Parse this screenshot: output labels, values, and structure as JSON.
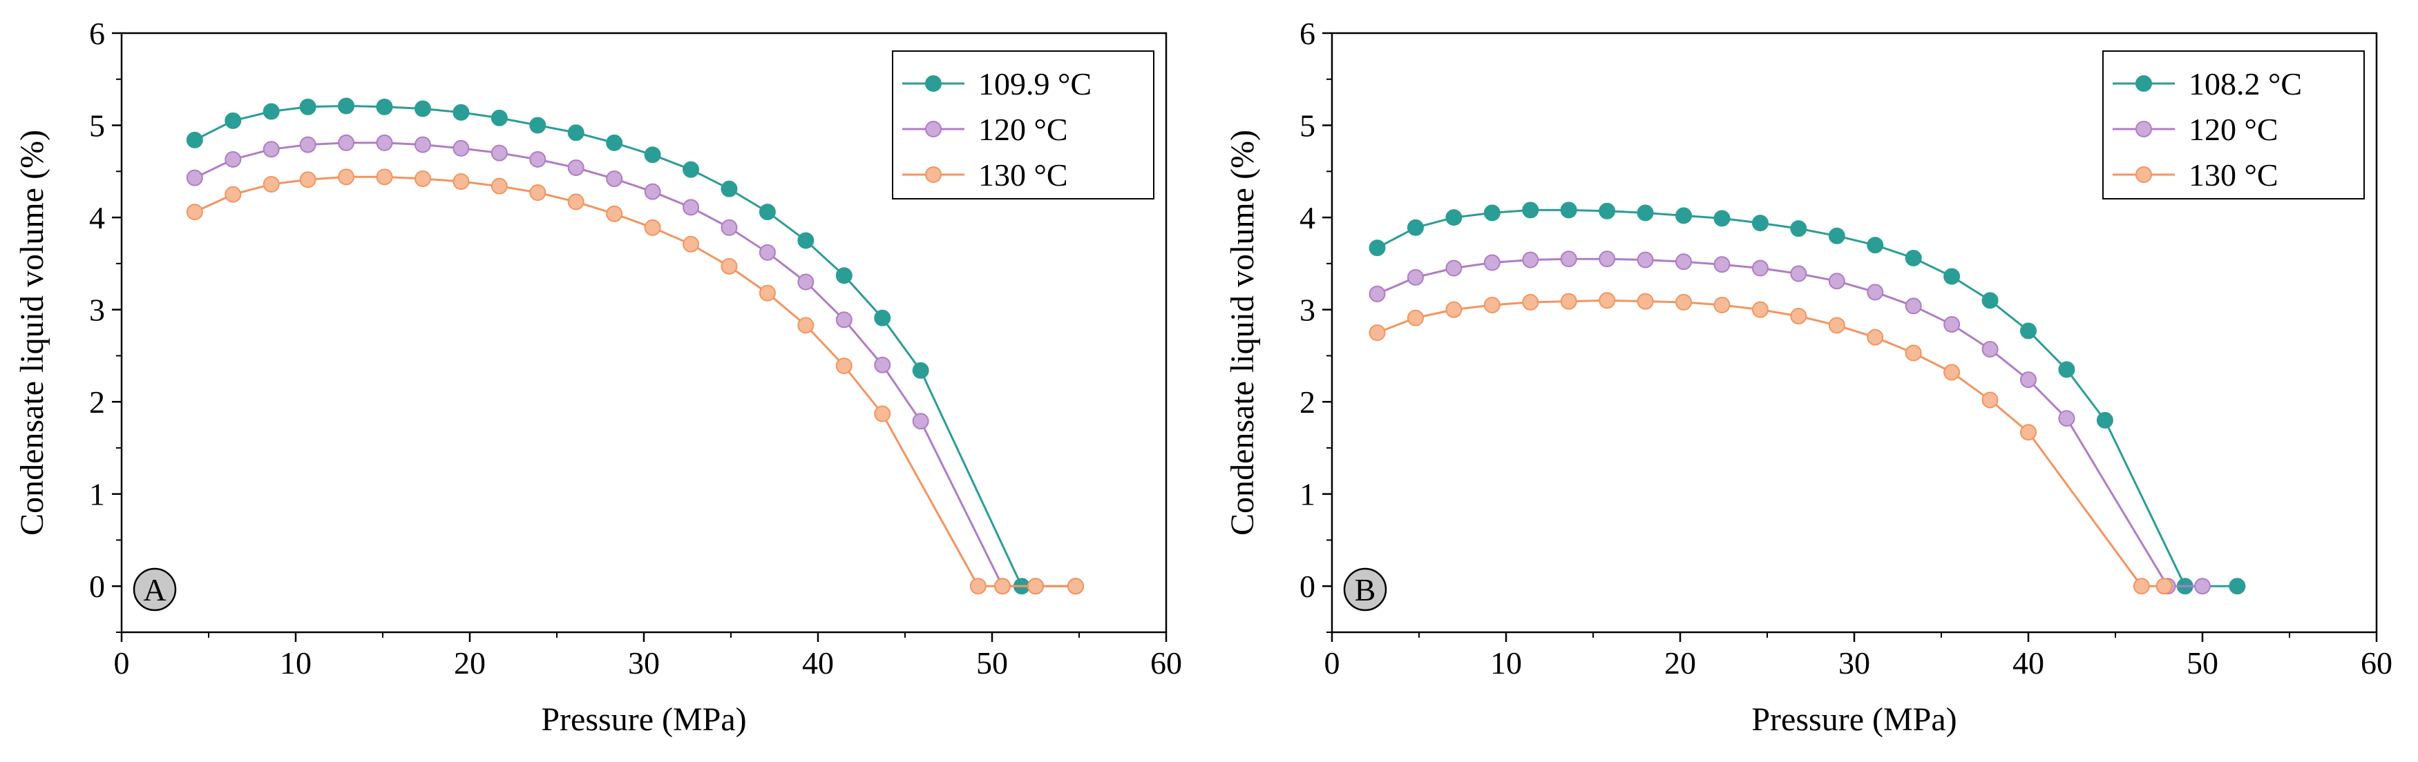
{
  "chart_data": [
    {
      "type": "line",
      "panel_label": "A",
      "xlabel": "Pressure (MPa)",
      "ylabel": "Condensate liquid volume (%)",
      "xlim": [
        0,
        60
      ],
      "ylim": [
        -0.5,
        6
      ],
      "xticks": [
        "0",
        "10",
        "20",
        "30",
        "40",
        "50",
        "60"
      ],
      "yticks": [
        "0",
        "1",
        "2",
        "3",
        "4",
        "5",
        "6"
      ],
      "legend_position": "top-right",
      "series": [
        {
          "name": "109.9 °C",
          "color": "#2a9d96",
          "x": [
            4.2,
            6.4,
            8.6,
            10.7,
            12.9,
            15.1,
            17.3,
            19.5,
            21.7,
            23.9,
            26.1,
            28.3,
            30.5,
            32.7,
            34.9,
            37.1,
            39.3,
            41.5,
            43.7,
            45.9,
            51.7,
            52.5,
            54.8
          ],
          "y": [
            4.84,
            5.05,
            5.15,
            5.2,
            5.21,
            5.2,
            5.18,
            5.14,
            5.08,
            5.0,
            4.92,
            4.81,
            4.68,
            4.52,
            4.31,
            4.06,
            3.75,
            3.37,
            2.91,
            2.34,
            0.0,
            0.0,
            0.0
          ]
        },
        {
          "name": "120 °C",
          "color": "#b07cc6",
          "x": [
            4.2,
            6.4,
            8.6,
            10.7,
            12.9,
            15.1,
            17.3,
            19.5,
            21.7,
            23.9,
            26.1,
            28.3,
            30.5,
            32.7,
            34.9,
            37.1,
            39.3,
            41.5,
            43.7,
            45.9,
            50.6,
            52.5,
            54.8
          ],
          "y": [
            4.43,
            4.63,
            4.74,
            4.79,
            4.81,
            4.81,
            4.79,
            4.75,
            4.7,
            4.63,
            4.54,
            4.42,
            4.28,
            4.11,
            3.89,
            3.62,
            3.3,
            2.89,
            2.4,
            1.79,
            0.0,
            0.0,
            0.0
          ]
        },
        {
          "name": "130 °C",
          "color": "#f3955f",
          "x": [
            4.2,
            6.4,
            8.6,
            10.7,
            12.9,
            15.1,
            17.3,
            19.5,
            21.7,
            23.9,
            26.1,
            28.3,
            30.5,
            32.7,
            34.9,
            37.1,
            39.3,
            41.5,
            43.7,
            49.2,
            50.6,
            52.5,
            54.8
          ],
          "y": [
            4.06,
            4.25,
            4.36,
            4.41,
            4.44,
            4.44,
            4.42,
            4.39,
            4.34,
            4.27,
            4.17,
            4.04,
            3.89,
            3.71,
            3.47,
            3.18,
            2.83,
            2.39,
            1.87,
            0.0,
            0.0,
            0.0,
            0.0
          ]
        }
      ]
    },
    {
      "type": "line",
      "panel_label": "B",
      "xlabel": "Pressure (MPa)",
      "ylabel": "Condensate liquid volume (%)",
      "xlim": [
        0,
        60
      ],
      "ylim": [
        -0.5,
        6
      ],
      "xticks": [
        "0",
        "10",
        "20",
        "30",
        "40",
        "50",
        "60"
      ],
      "yticks": [
        "0",
        "1",
        "2",
        "3",
        "4",
        "5",
        "6"
      ],
      "legend_position": "top-right",
      "series": [
        {
          "name": "108.2 °C",
          "color": "#2a9d96",
          "x": [
            2.6,
            4.8,
            7.0,
            9.2,
            11.4,
            13.6,
            15.8,
            18.0,
            20.2,
            22.4,
            24.6,
            26.8,
            29.0,
            31.2,
            33.4,
            35.6,
            37.8,
            40.0,
            42.2,
            44.4,
            49.0,
            52.0
          ],
          "y": [
            3.67,
            3.89,
            4.0,
            4.05,
            4.08,
            4.08,
            4.07,
            4.05,
            4.02,
            3.99,
            3.94,
            3.88,
            3.8,
            3.7,
            3.56,
            3.36,
            3.1,
            2.77,
            2.35,
            1.8,
            0.0,
            0.0
          ]
        },
        {
          "name": "120 °C",
          "color": "#b07cc6",
          "x": [
            2.6,
            4.8,
            7.0,
            9.2,
            11.4,
            13.6,
            15.8,
            18.0,
            20.2,
            22.4,
            24.6,
            26.8,
            29.0,
            31.2,
            33.4,
            35.6,
            37.8,
            40.0,
            42.2,
            48.0,
            50.0
          ],
          "y": [
            3.17,
            3.35,
            3.45,
            3.51,
            3.54,
            3.55,
            3.55,
            3.54,
            3.52,
            3.49,
            3.45,
            3.39,
            3.31,
            3.19,
            3.04,
            2.84,
            2.57,
            2.24,
            1.82,
            0.0,
            0.0
          ]
        },
        {
          "name": "130 °C",
          "color": "#f3955f",
          "x": [
            2.6,
            4.8,
            7.0,
            9.2,
            11.4,
            13.6,
            15.8,
            18.0,
            20.2,
            22.4,
            24.6,
            26.8,
            29.0,
            31.2,
            33.4,
            35.6,
            37.8,
            40.0,
            46.5,
            47.8
          ],
          "y": [
            2.75,
            2.91,
            3.0,
            3.05,
            3.08,
            3.09,
            3.1,
            3.09,
            3.08,
            3.05,
            3.0,
            2.93,
            2.83,
            2.7,
            2.53,
            2.32,
            2.02,
            1.67,
            0.0,
            0.0
          ]
        }
      ]
    }
  ]
}
